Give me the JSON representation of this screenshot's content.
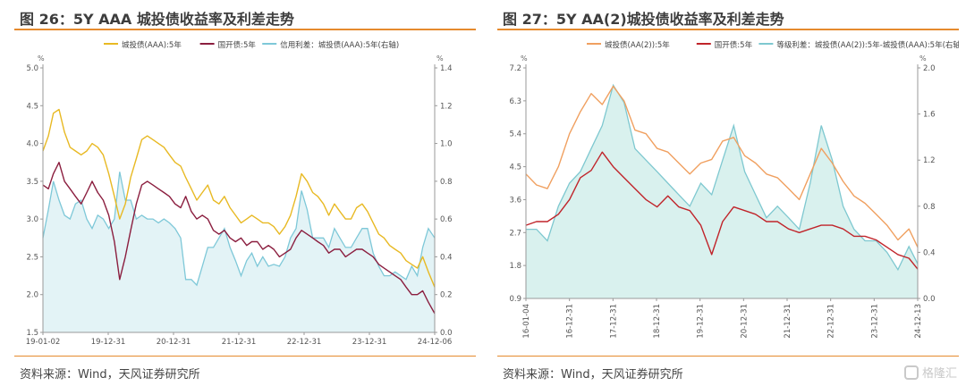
{
  "watermark": {
    "text": "格隆汇"
  },
  "chart_data": [
    {
      "type": "line",
      "title": "图 26：5Y AAA 城投债收益率及利差走势",
      "source": "资料来源：Wind，天风证券研究所",
      "unit_left": "%",
      "unit_right": "%",
      "legend_position": "top",
      "ylim_left": [
        1.5,
        5.0
      ],
      "ylim_right": [
        0,
        1.4
      ],
      "yticks_left": [
        "5.0",
        "4.5",
        "4.0",
        "3.5",
        "3.0",
        "2.5",
        "2.0",
        "1.5"
      ],
      "yticks_right": [
        "1.4",
        "1.2",
        "1.0",
        "0.8",
        "0.6",
        "0.4",
        "0.2",
        "0.0"
      ],
      "xticks": [
        "19-01-02",
        "19-12-31",
        "20-12-31",
        "21-12-31",
        "22-12-31",
        "23-12-31",
        "24-12-06"
      ],
      "x_range": [
        "2019-01-02",
        "2024-12-06"
      ],
      "colors": {
        "s1": "#e8b923",
        "s2": "#8b1e3f",
        "s3": "#7ec8d8",
        "area": "#e3f3f6"
      },
      "series": [
        {
          "name": "城投债(AAA):5年",
          "axis": "left",
          "style": "line",
          "x": [
            "2019-01-02",
            "2019-02-01",
            "2019-03-01",
            "2019-04-01",
            "2019-05-01",
            "2019-06-01",
            "2019-07-01",
            "2019-08-01",
            "2019-09-01",
            "2019-10-01",
            "2019-11-01",
            "2019-12-01",
            "2020-01-01",
            "2020-02-01",
            "2020-03-01",
            "2020-04-01",
            "2020-05-01",
            "2020-06-01",
            "2020-07-01",
            "2020-08-01",
            "2020-09-01",
            "2020-10-01",
            "2020-11-01",
            "2020-12-01",
            "2021-01-01",
            "2021-02-01",
            "2021-03-01",
            "2021-04-01",
            "2021-05-01",
            "2021-06-01",
            "2021-07-01",
            "2021-08-01",
            "2021-09-01",
            "2021-10-01",
            "2021-11-01",
            "2021-12-01",
            "2022-01-01",
            "2022-02-01",
            "2022-03-01",
            "2022-04-01",
            "2022-05-01",
            "2022-06-01",
            "2022-07-01",
            "2022-08-01",
            "2022-09-01",
            "2022-10-01",
            "2022-11-01",
            "2022-12-01",
            "2023-01-01",
            "2023-02-01",
            "2023-03-01",
            "2023-04-01",
            "2023-05-01",
            "2023-06-01",
            "2023-07-01",
            "2023-08-01",
            "2023-09-01",
            "2023-10-01",
            "2023-11-01",
            "2023-12-01",
            "2024-01-01",
            "2024-02-01",
            "2024-03-01",
            "2024-04-01",
            "2024-05-01",
            "2024-06-01",
            "2024-07-01",
            "2024-08-01",
            "2024-09-01",
            "2024-10-01",
            "2024-11-01",
            "2024-12-06"
          ],
          "values": [
            3.9,
            4.1,
            4.4,
            4.45,
            4.15,
            3.95,
            3.9,
            3.85,
            3.9,
            4.0,
            3.95,
            3.85,
            3.6,
            3.3,
            3.0,
            3.2,
            3.55,
            3.8,
            4.05,
            4.1,
            4.05,
            4.0,
            3.95,
            3.85,
            3.75,
            3.7,
            3.55,
            3.4,
            3.25,
            3.35,
            3.45,
            3.25,
            3.2,
            3.3,
            3.15,
            3.05,
            2.95,
            3.0,
            3.05,
            3.0,
            2.95,
            2.95,
            2.9,
            2.8,
            2.9,
            3.05,
            3.3,
            3.6,
            3.5,
            3.35,
            3.3,
            3.2,
            3.05,
            3.2,
            3.1,
            3.0,
            3.0,
            3.15,
            3.2,
            3.1,
            2.95,
            2.8,
            2.75,
            2.65,
            2.6,
            2.55,
            2.45,
            2.4,
            2.35,
            2.5,
            2.3,
            2.1
          ]
        },
        {
          "name": "国开债:5年",
          "axis": "left",
          "style": "line",
          "x": [
            "2019-01-02",
            "2019-02-01",
            "2019-03-01",
            "2019-04-01",
            "2019-05-01",
            "2019-06-01",
            "2019-07-01",
            "2019-08-01",
            "2019-09-01",
            "2019-10-01",
            "2019-11-01",
            "2019-12-01",
            "2020-01-01",
            "2020-02-01",
            "2020-03-01",
            "2020-04-01",
            "2020-05-01",
            "2020-06-01",
            "2020-07-01",
            "2020-08-01",
            "2020-09-01",
            "2020-10-01",
            "2020-11-01",
            "2020-12-01",
            "2021-01-01",
            "2021-02-01",
            "2021-03-01",
            "2021-04-01",
            "2021-05-01",
            "2021-06-01",
            "2021-07-01",
            "2021-08-01",
            "2021-09-01",
            "2021-10-01",
            "2021-11-01",
            "2021-12-01",
            "2022-01-01",
            "2022-02-01",
            "2022-03-01",
            "2022-04-01",
            "2022-05-01",
            "2022-06-01",
            "2022-07-01",
            "2022-08-01",
            "2022-09-01",
            "2022-10-01",
            "2022-11-01",
            "2022-12-01",
            "2023-01-01",
            "2023-02-01",
            "2023-03-01",
            "2023-04-01",
            "2023-05-01",
            "2023-06-01",
            "2023-07-01",
            "2023-08-01",
            "2023-09-01",
            "2023-10-01",
            "2023-11-01",
            "2023-12-01",
            "2024-01-01",
            "2024-02-01",
            "2024-03-01",
            "2024-04-01",
            "2024-05-01",
            "2024-06-01",
            "2024-07-01",
            "2024-08-01",
            "2024-09-01",
            "2024-10-01",
            "2024-11-01",
            "2024-12-06"
          ],
          "values": [
            3.45,
            3.4,
            3.6,
            3.75,
            3.5,
            3.4,
            3.3,
            3.2,
            3.35,
            3.5,
            3.35,
            3.25,
            3.05,
            2.7,
            2.2,
            2.5,
            2.85,
            3.2,
            3.45,
            3.5,
            3.45,
            3.4,
            3.35,
            3.3,
            3.2,
            3.15,
            3.3,
            3.1,
            3.0,
            3.05,
            3.0,
            2.85,
            2.8,
            2.85,
            2.75,
            2.7,
            2.75,
            2.65,
            2.7,
            2.7,
            2.6,
            2.65,
            2.6,
            2.5,
            2.55,
            2.6,
            2.75,
            2.85,
            2.8,
            2.75,
            2.7,
            2.65,
            2.55,
            2.6,
            2.6,
            2.5,
            2.55,
            2.6,
            2.6,
            2.55,
            2.5,
            2.4,
            2.35,
            2.3,
            2.25,
            2.2,
            2.1,
            2.0,
            2.0,
            2.05,
            1.9,
            1.75
          ]
        },
        {
          "name": "信用利差：城投债(AAA):5年(右轴)",
          "axis": "right",
          "style": "area",
          "x": [
            "2019-01-02",
            "2019-02-01",
            "2019-03-01",
            "2019-04-01",
            "2019-05-01",
            "2019-06-01",
            "2019-07-01",
            "2019-08-01",
            "2019-09-01",
            "2019-10-01",
            "2019-11-01",
            "2019-12-01",
            "2020-01-01",
            "2020-02-01",
            "2020-03-01",
            "2020-04-01",
            "2020-05-01",
            "2020-06-01",
            "2020-07-01",
            "2020-08-01",
            "2020-09-01",
            "2020-10-01",
            "2020-11-01",
            "2020-12-01",
            "2021-01-01",
            "2021-02-01",
            "2021-03-01",
            "2021-04-01",
            "2021-05-01",
            "2021-06-01",
            "2021-07-01",
            "2021-08-01",
            "2021-09-01",
            "2021-10-01",
            "2021-11-01",
            "2021-12-01",
            "2022-01-01",
            "2022-02-01",
            "2022-03-01",
            "2022-04-01",
            "2022-05-01",
            "2022-06-01",
            "2022-07-01",
            "2022-08-01",
            "2022-09-01",
            "2022-10-01",
            "2022-11-01",
            "2022-12-01",
            "2023-01-01",
            "2023-02-01",
            "2023-03-01",
            "2023-04-01",
            "2023-05-01",
            "2023-06-01",
            "2023-07-01",
            "2023-08-01",
            "2023-09-01",
            "2023-10-01",
            "2023-11-01",
            "2023-12-01",
            "2024-01-01",
            "2024-02-01",
            "2024-03-01",
            "2024-04-01",
            "2024-05-01",
            "2024-06-01",
            "2024-07-01",
            "2024-08-01",
            "2024-09-01",
            "2024-10-01",
            "2024-11-01",
            "2024-12-06"
          ],
          "values": [
            0.5,
            0.65,
            0.8,
            0.7,
            0.62,
            0.6,
            0.68,
            0.7,
            0.6,
            0.55,
            0.62,
            0.6,
            0.55,
            0.6,
            0.85,
            0.7,
            0.7,
            0.6,
            0.62,
            0.6,
            0.6,
            0.58,
            0.6,
            0.58,
            0.55,
            0.5,
            0.28,
            0.28,
            0.25,
            0.35,
            0.45,
            0.45,
            0.5,
            0.55,
            0.45,
            0.38,
            0.3,
            0.38,
            0.42,
            0.35,
            0.4,
            0.35,
            0.36,
            0.35,
            0.4,
            0.5,
            0.55,
            0.75,
            0.65,
            0.5,
            0.5,
            0.5,
            0.45,
            0.55,
            0.5,
            0.45,
            0.45,
            0.5,
            0.55,
            0.55,
            0.42,
            0.35,
            0.3,
            0.3,
            0.32,
            0.3,
            0.28,
            0.35,
            0.3,
            0.45,
            0.55,
            0.5
          ]
        }
      ]
    },
    {
      "type": "line",
      "title": "图 27：5Y AA(2)城投债收益率及利差走势",
      "source": "资料来源：Wind，天风证券研究所",
      "unit_left": "%",
      "unit_right": "%",
      "legend_position": "top",
      "ylim_left": [
        0.9,
        7.2
      ],
      "ylim_right": [
        0,
        2.0
      ],
      "yticks_left": [
        "7.2",
        "6.3",
        "5.4",
        "4.5",
        "3.6",
        "2.7",
        "1.8",
        "0.9"
      ],
      "yticks_right": [
        "2.0",
        "1.6",
        "1.2",
        "0.8",
        "0.4",
        "0.0"
      ],
      "xticks": [
        "16-01-04",
        "16-12-31",
        "17-12-31",
        "18-12-31",
        "19-12-31",
        "20-12-31",
        "21-12-31",
        "22-12-31",
        "23-12-31",
        "24-12-13"
      ],
      "x_range": [
        "2016-01-04",
        "2024-12-13"
      ],
      "colors": {
        "s1": "#f0a060",
        "s2": "#c0242a",
        "s3": "#7ec8d0",
        "area": "#d9f1ee"
      },
      "series": [
        {
          "name": "城投债(AA(2)):5年",
          "axis": "left",
          "style": "line",
          "x": [
            "2016-01-04",
            "2016-04-01",
            "2016-07-01",
            "2016-10-01",
            "2017-01-01",
            "2017-04-01",
            "2017-07-01",
            "2017-10-01",
            "2018-01-01",
            "2018-04-01",
            "2018-07-01",
            "2018-10-01",
            "2019-01-01",
            "2019-04-01",
            "2019-07-01",
            "2019-10-01",
            "2020-01-01",
            "2020-04-01",
            "2020-07-01",
            "2020-10-01",
            "2021-01-01",
            "2021-04-01",
            "2021-07-01",
            "2021-10-01",
            "2022-01-01",
            "2022-04-01",
            "2022-07-01",
            "2022-10-01",
            "2023-01-01",
            "2023-04-01",
            "2023-07-01",
            "2023-10-01",
            "2024-01-01",
            "2024-04-01",
            "2024-07-01",
            "2024-10-01",
            "2024-12-13"
          ],
          "values": [
            4.3,
            4.0,
            3.9,
            4.5,
            5.4,
            6.0,
            6.5,
            6.2,
            6.7,
            6.3,
            5.5,
            5.4,
            5.0,
            4.9,
            4.6,
            4.3,
            4.6,
            4.7,
            5.2,
            5.3,
            4.8,
            4.6,
            4.3,
            4.2,
            3.9,
            3.6,
            4.3,
            5.0,
            4.6,
            4.1,
            3.7,
            3.5,
            3.2,
            2.9,
            2.5,
            2.8,
            2.3
          ]
        },
        {
          "name": "国开债:5年",
          "axis": "left",
          "style": "line",
          "x": [
            "2016-01-04",
            "2016-04-01",
            "2016-07-01",
            "2016-10-01",
            "2017-01-01",
            "2017-04-01",
            "2017-07-01",
            "2017-10-01",
            "2018-01-01",
            "2018-04-01",
            "2018-07-01",
            "2018-10-01",
            "2019-01-01",
            "2019-04-01",
            "2019-07-01",
            "2019-10-01",
            "2020-01-01",
            "2020-04-01",
            "2020-07-01",
            "2020-10-01",
            "2021-01-01",
            "2021-04-01",
            "2021-07-01",
            "2021-10-01",
            "2022-01-01",
            "2022-04-01",
            "2022-07-01",
            "2022-10-01",
            "2023-01-01",
            "2023-04-01",
            "2023-07-01",
            "2023-10-01",
            "2024-01-01",
            "2024-04-01",
            "2024-07-01",
            "2024-10-01",
            "2024-12-13"
          ],
          "values": [
            2.9,
            3.0,
            3.0,
            3.2,
            3.6,
            4.2,
            4.4,
            4.9,
            4.5,
            4.2,
            3.9,
            3.6,
            3.4,
            3.7,
            3.4,
            3.3,
            2.9,
            2.1,
            3.0,
            3.4,
            3.3,
            3.2,
            3.0,
            3.0,
            2.8,
            2.7,
            2.8,
            2.9,
            2.9,
            2.8,
            2.6,
            2.6,
            2.5,
            2.3,
            2.1,
            2.0,
            1.7
          ]
        },
        {
          "name": "等级利差：城投债(AA(2)):5年-城投债(AAA):5年(右轴)",
          "axis": "right",
          "style": "area",
          "x": [
            "2016-01-04",
            "2016-04-01",
            "2016-07-01",
            "2016-10-01",
            "2017-01-01",
            "2017-04-01",
            "2017-07-01",
            "2017-10-01",
            "2018-01-01",
            "2018-04-01",
            "2018-07-01",
            "2018-10-01",
            "2019-01-01",
            "2019-04-01",
            "2019-07-01",
            "2019-10-01",
            "2020-01-01",
            "2020-04-01",
            "2020-07-01",
            "2020-10-01",
            "2021-01-01",
            "2021-04-01",
            "2021-07-01",
            "2021-10-01",
            "2022-01-01",
            "2022-04-01",
            "2022-07-01",
            "2022-10-01",
            "2023-01-01",
            "2023-04-01",
            "2023-07-01",
            "2023-10-01",
            "2024-01-01",
            "2024-04-01",
            "2024-07-01",
            "2024-10-01",
            "2024-12-13"
          ],
          "values": [
            0.6,
            0.6,
            0.5,
            0.8,
            1.0,
            1.1,
            1.3,
            1.5,
            1.85,
            1.7,
            1.3,
            1.2,
            1.1,
            1.0,
            0.9,
            0.8,
            1.0,
            0.9,
            1.2,
            1.5,
            1.1,
            0.9,
            0.7,
            0.8,
            0.7,
            0.6,
            1.0,
            1.5,
            1.2,
            0.8,
            0.6,
            0.5,
            0.5,
            0.4,
            0.25,
            0.45,
            0.3
          ]
        }
      ]
    }
  ]
}
